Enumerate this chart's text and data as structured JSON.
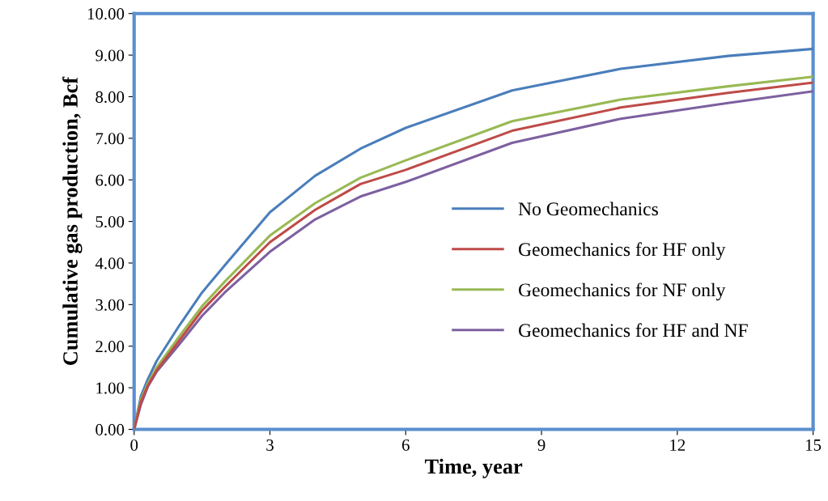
{
  "chart_data": {
    "type": "line",
    "xlabel": "Time, year",
    "ylabel": "Cumulative gas production, Bcf",
    "x": [
      0,
      0.15,
      0.3,
      0.5,
      1,
      1.5,
      2,
      3,
      4,
      5,
      6,
      8.35,
      10.75,
      13.12,
      15
    ],
    "series": [
      {
        "name": "No Geomechanics",
        "color": "#4a7ebb",
        "values": [
          0,
          0.8,
          1.2,
          1.65,
          2.5,
          3.29,
          3.94,
          5.22,
          6.1,
          6.75,
          7.25,
          8.15,
          8.67,
          8.98,
          9.15
        ]
      },
      {
        "name": "Geomechanics for HF only",
        "color": "#be4b48",
        "values": [
          0,
          0.66,
          1.05,
          1.42,
          2.14,
          2.86,
          3.42,
          4.5,
          5.28,
          5.9,
          6.24,
          7.18,
          7.74,
          8.09,
          8.34
        ]
      },
      {
        "name": "Geomechanics for NF only",
        "color": "#98b954",
        "values": [
          0,
          0.72,
          1.1,
          1.49,
          2.24,
          2.96,
          3.55,
          4.66,
          5.44,
          6.05,
          6.47,
          7.41,
          7.93,
          8.25,
          8.48
        ]
      },
      {
        "name": "Geomechanics for HF and NF",
        "color": "#7d60a0",
        "values": [
          0,
          0.6,
          1.02,
          1.39,
          2.05,
          2.73,
          3.29,
          4.27,
          5.05,
          5.6,
          5.95,
          6.89,
          7.47,
          7.85,
          8.13
        ]
      }
    ],
    "xlim": [
      0,
      15
    ],
    "xticks": [
      0,
      3,
      6,
      9,
      12,
      15
    ],
    "ylim": [
      0,
      10
    ],
    "yticks": [
      {
        "value": 0,
        "label": "0.00"
      },
      {
        "value": 1,
        "label": "1.00"
      },
      {
        "value": 2,
        "label": "2.00"
      },
      {
        "value": 3,
        "label": "3.00"
      },
      {
        "value": 4,
        "label": "4.00"
      },
      {
        "value": 5,
        "label": "5.00"
      },
      {
        "value": 6,
        "label": "6.00"
      },
      {
        "value": 7,
        "label": "7.00"
      },
      {
        "value": 8,
        "label": "8.00"
      },
      {
        "value": 9,
        "label": "9.00"
      },
      {
        "value": 10,
        "label": "10.00"
      }
    ],
    "grid": false,
    "legend": "right",
    "marker": "none",
    "line_style": "solid"
  }
}
